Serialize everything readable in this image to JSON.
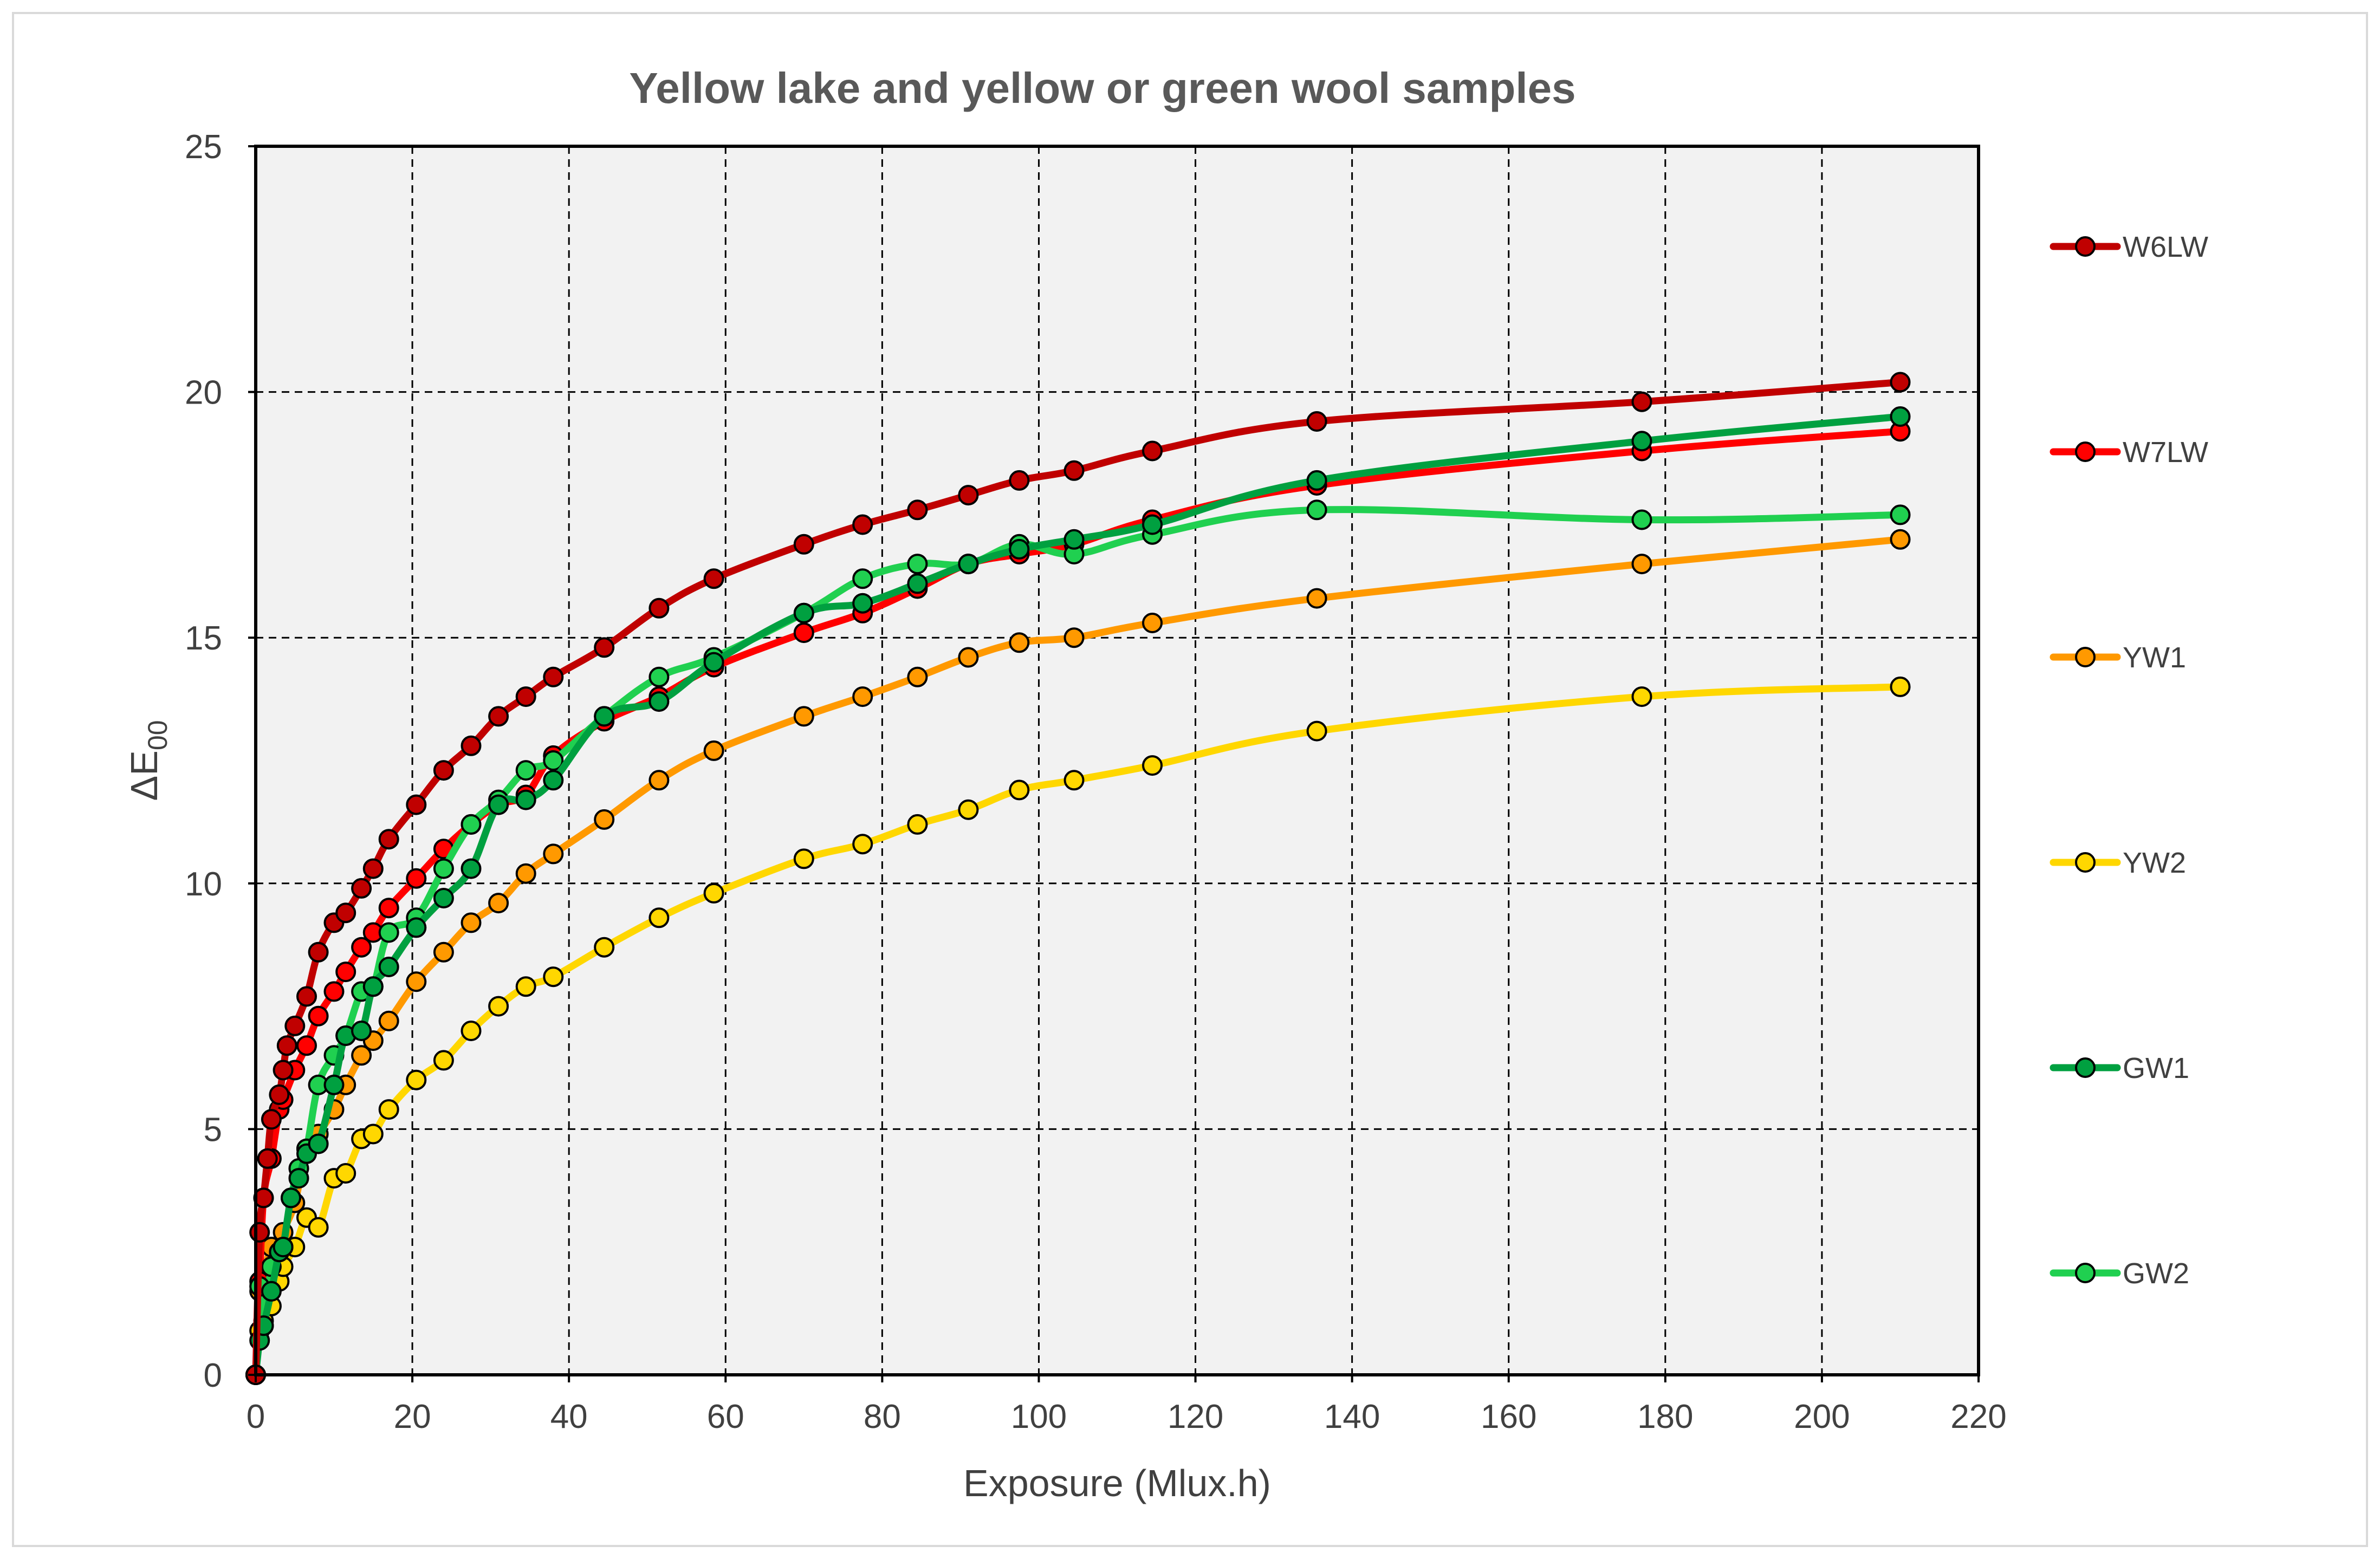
{
  "chart_data": {
    "type": "line",
    "title": "Yellow lake and yellow or green wool samples",
    "xlabel": "Exposure (Mlux.h)",
    "ylabel": "ΔE",
    "ylabel_subscript": "00",
    "xlim": [
      0,
      220
    ],
    "ylim": [
      0,
      25
    ],
    "xticks": [
      "0",
      "20",
      "40",
      "60",
      "80",
      "100",
      "120",
      "140",
      "160",
      "180",
      "200",
      "220"
    ],
    "yticks": [
      "0",
      "5",
      "10",
      "15",
      "20",
      "25"
    ],
    "grid": true,
    "grid_style": "dashed",
    "legend_position": "right",
    "background": "#f2f2f2",
    "series": [
      {
        "name": "W6LW",
        "color": "#c00000",
        "points": [
          [
            0,
            0
          ],
          [
            0.5,
            2.9
          ],
          [
            1,
            3.6
          ],
          [
            1.5,
            4.4
          ],
          [
            2,
            5.2
          ],
          [
            3,
            5.7
          ],
          [
            3.5,
            6.2
          ],
          [
            4,
            6.7
          ],
          [
            5,
            7.1
          ],
          [
            6.5,
            7.7
          ],
          [
            8,
            8.6
          ],
          [
            10,
            9.2
          ],
          [
            11.5,
            9.4
          ],
          [
            13.5,
            9.9
          ],
          [
            15,
            10.3
          ],
          [
            17,
            10.9
          ],
          [
            20.5,
            11.6
          ],
          [
            24,
            12.3
          ],
          [
            27.5,
            12.8
          ],
          [
            31,
            13.4
          ],
          [
            34.5,
            13.8
          ],
          [
            38,
            14.2
          ],
          [
            44.5,
            14.8
          ],
          [
            51.5,
            15.6
          ],
          [
            58.5,
            16.2
          ],
          [
            70,
            16.9
          ],
          [
            77.5,
            17.3
          ],
          [
            84.5,
            17.6
          ],
          [
            91,
            17.9
          ],
          [
            97.5,
            18.2
          ],
          [
            104.5,
            18.4
          ],
          [
            114.5,
            18.8
          ],
          [
            135.5,
            19.4
          ],
          [
            177,
            19.8
          ],
          [
            210,
            20.2
          ]
        ]
      },
      {
        "name": "W7LW",
        "color": "#ff0000",
        "points": [
          [
            0,
            0
          ],
          [
            0.5,
            1.9
          ],
          [
            1,
            3.6
          ],
          [
            2,
            4.4
          ],
          [
            3,
            5.4
          ],
          [
            3.5,
            5.6
          ],
          [
            5,
            6.2
          ],
          [
            6.5,
            6.7
          ],
          [
            8,
            7.3
          ],
          [
            10,
            7.8
          ],
          [
            11.5,
            8.2
          ],
          [
            13.5,
            8.7
          ],
          [
            15,
            9.0
          ],
          [
            17,
            9.5
          ],
          [
            20.5,
            10.1
          ],
          [
            24,
            10.7
          ],
          [
            27.5,
            11.2
          ],
          [
            31,
            11.6
          ],
          [
            34.5,
            11.8
          ],
          [
            38,
            12.6
          ],
          [
            44.5,
            13.3
          ],
          [
            51.5,
            13.8
          ],
          [
            58.5,
            14.4
          ],
          [
            70,
            15.1
          ],
          [
            77.5,
            15.5
          ],
          [
            84.5,
            16.0
          ],
          [
            91,
            16.5
          ],
          [
            97.5,
            16.7
          ],
          [
            104.5,
            16.9
          ],
          [
            114.5,
            17.4
          ],
          [
            135.5,
            18.1
          ],
          [
            177,
            18.8
          ],
          [
            210,
            19.2
          ]
        ]
      },
      {
        "name": "YW1",
        "color": "#ff9900",
        "points": [
          [
            0,
            0
          ],
          [
            0.5,
            1.7
          ],
          [
            1,
            2.0
          ],
          [
            2,
            2.6
          ],
          [
            3,
            2.5
          ],
          [
            3.5,
            2.9
          ],
          [
            5,
            3.5
          ],
          [
            6.5,
            4.6
          ],
          [
            8,
            4.9
          ],
          [
            10,
            5.4
          ],
          [
            11.5,
            5.9
          ],
          [
            13.5,
            6.5
          ],
          [
            15,
            6.8
          ],
          [
            17,
            7.2
          ],
          [
            20.5,
            8.0
          ],
          [
            24,
            8.6
          ],
          [
            27.5,
            9.2
          ],
          [
            31,
            9.6
          ],
          [
            34.5,
            10.2
          ],
          [
            38,
            10.6
          ],
          [
            44.5,
            11.3
          ],
          [
            51.5,
            12.1
          ],
          [
            58.5,
            12.7
          ],
          [
            70,
            13.4
          ],
          [
            77.5,
            13.8
          ],
          [
            84.5,
            14.2
          ],
          [
            91,
            14.6
          ],
          [
            97.5,
            14.9
          ],
          [
            104.5,
            15.0
          ],
          [
            114.5,
            15.3
          ],
          [
            135.5,
            15.8
          ],
          [
            177,
            16.5
          ],
          [
            210,
            17.0
          ]
        ]
      },
      {
        "name": "YW2",
        "color": "#ffd700",
        "points": [
          [
            0,
            0
          ],
          [
            0.5,
            0.9
          ],
          [
            1,
            1.1
          ],
          [
            2,
            1.4
          ],
          [
            3,
            1.9
          ],
          [
            3.5,
            2.2
          ],
          [
            5,
            2.6
          ],
          [
            6.5,
            3.2
          ],
          [
            8,
            3.0
          ],
          [
            10,
            4.0
          ],
          [
            11.5,
            4.1
          ],
          [
            13.5,
            4.8
          ],
          [
            15,
            4.9
          ],
          [
            17,
            5.4
          ],
          [
            20.5,
            6.0
          ],
          [
            24,
            6.4
          ],
          [
            27.5,
            7.0
          ],
          [
            31,
            7.5
          ],
          [
            34.5,
            7.9
          ],
          [
            38,
            8.1
          ],
          [
            44.5,
            8.7
          ],
          [
            51.5,
            9.3
          ],
          [
            58.5,
            9.8
          ],
          [
            70,
            10.5
          ],
          [
            77.5,
            10.8
          ],
          [
            84.5,
            11.2
          ],
          [
            91,
            11.5
          ],
          [
            97.5,
            11.9
          ],
          [
            104.5,
            12.1
          ],
          [
            114.5,
            12.4
          ],
          [
            135.5,
            13.1
          ],
          [
            177,
            13.8
          ],
          [
            210,
            14.0
          ]
        ]
      },
      {
        "name": "GW1",
        "color": "#00a040",
        "points": [
          [
            0,
            0
          ],
          [
            0.5,
            0.7
          ],
          [
            1,
            1.0
          ],
          [
            2,
            1.7
          ],
          [
            3,
            2.5
          ],
          [
            3.5,
            2.6
          ],
          [
            4.5,
            3.6
          ],
          [
            5.5,
            4.0
          ],
          [
            6.5,
            4.5
          ],
          [
            8,
            4.7
          ],
          [
            10,
            5.9
          ],
          [
            11.5,
            6.9
          ],
          [
            13.5,
            7.0
          ],
          [
            15,
            7.9
          ],
          [
            17,
            8.3
          ],
          [
            20.5,
            9.1
          ],
          [
            24,
            9.7
          ],
          [
            27.5,
            10.3
          ],
          [
            31,
            11.6
          ],
          [
            34.5,
            11.7
          ],
          [
            38,
            12.1
          ],
          [
            44.5,
            13.4
          ],
          [
            51.5,
            13.7
          ],
          [
            58.5,
            14.5
          ],
          [
            70,
            15.5
          ],
          [
            77.5,
            15.7
          ],
          [
            84.5,
            16.1
          ],
          [
            91,
            16.5
          ],
          [
            97.5,
            16.8
          ],
          [
            104.5,
            17.0
          ],
          [
            114.5,
            17.3
          ],
          [
            135.5,
            18.2
          ],
          [
            177,
            19.0
          ],
          [
            210,
            19.5
          ]
        ]
      },
      {
        "name": "GW2",
        "color": "#20d050",
        "points": [
          [
            0,
            0
          ],
          [
            0.5,
            1.8
          ],
          [
            1,
            1.0
          ],
          [
            2,
            2.2
          ],
          [
            3,
            2.5
          ],
          [
            3.5,
            2.6
          ],
          [
            4.5,
            3.6
          ],
          [
            5.5,
            4.2
          ],
          [
            6.5,
            4.6
          ],
          [
            8,
            5.9
          ],
          [
            10,
            6.5
          ],
          [
            11.5,
            6.9
          ],
          [
            13.5,
            7.8
          ],
          [
            15,
            7.9
          ],
          [
            17,
            9.0
          ],
          [
            20.5,
            9.3
          ],
          [
            24,
            10.3
          ],
          [
            27.5,
            11.2
          ],
          [
            31,
            11.7
          ],
          [
            34.5,
            12.3
          ],
          [
            38,
            12.5
          ],
          [
            44.5,
            13.4
          ],
          [
            51.5,
            14.2
          ],
          [
            58.5,
            14.6
          ],
          [
            70,
            15.5
          ],
          [
            77.5,
            16.2
          ],
          [
            84.5,
            16.5
          ],
          [
            91,
            16.5
          ],
          [
            97.5,
            16.9
          ],
          [
            104.5,
            16.7
          ],
          [
            114.5,
            17.1
          ],
          [
            135.5,
            17.6
          ],
          [
            177,
            17.4
          ],
          [
            210,
            17.5
          ]
        ]
      }
    ]
  }
}
